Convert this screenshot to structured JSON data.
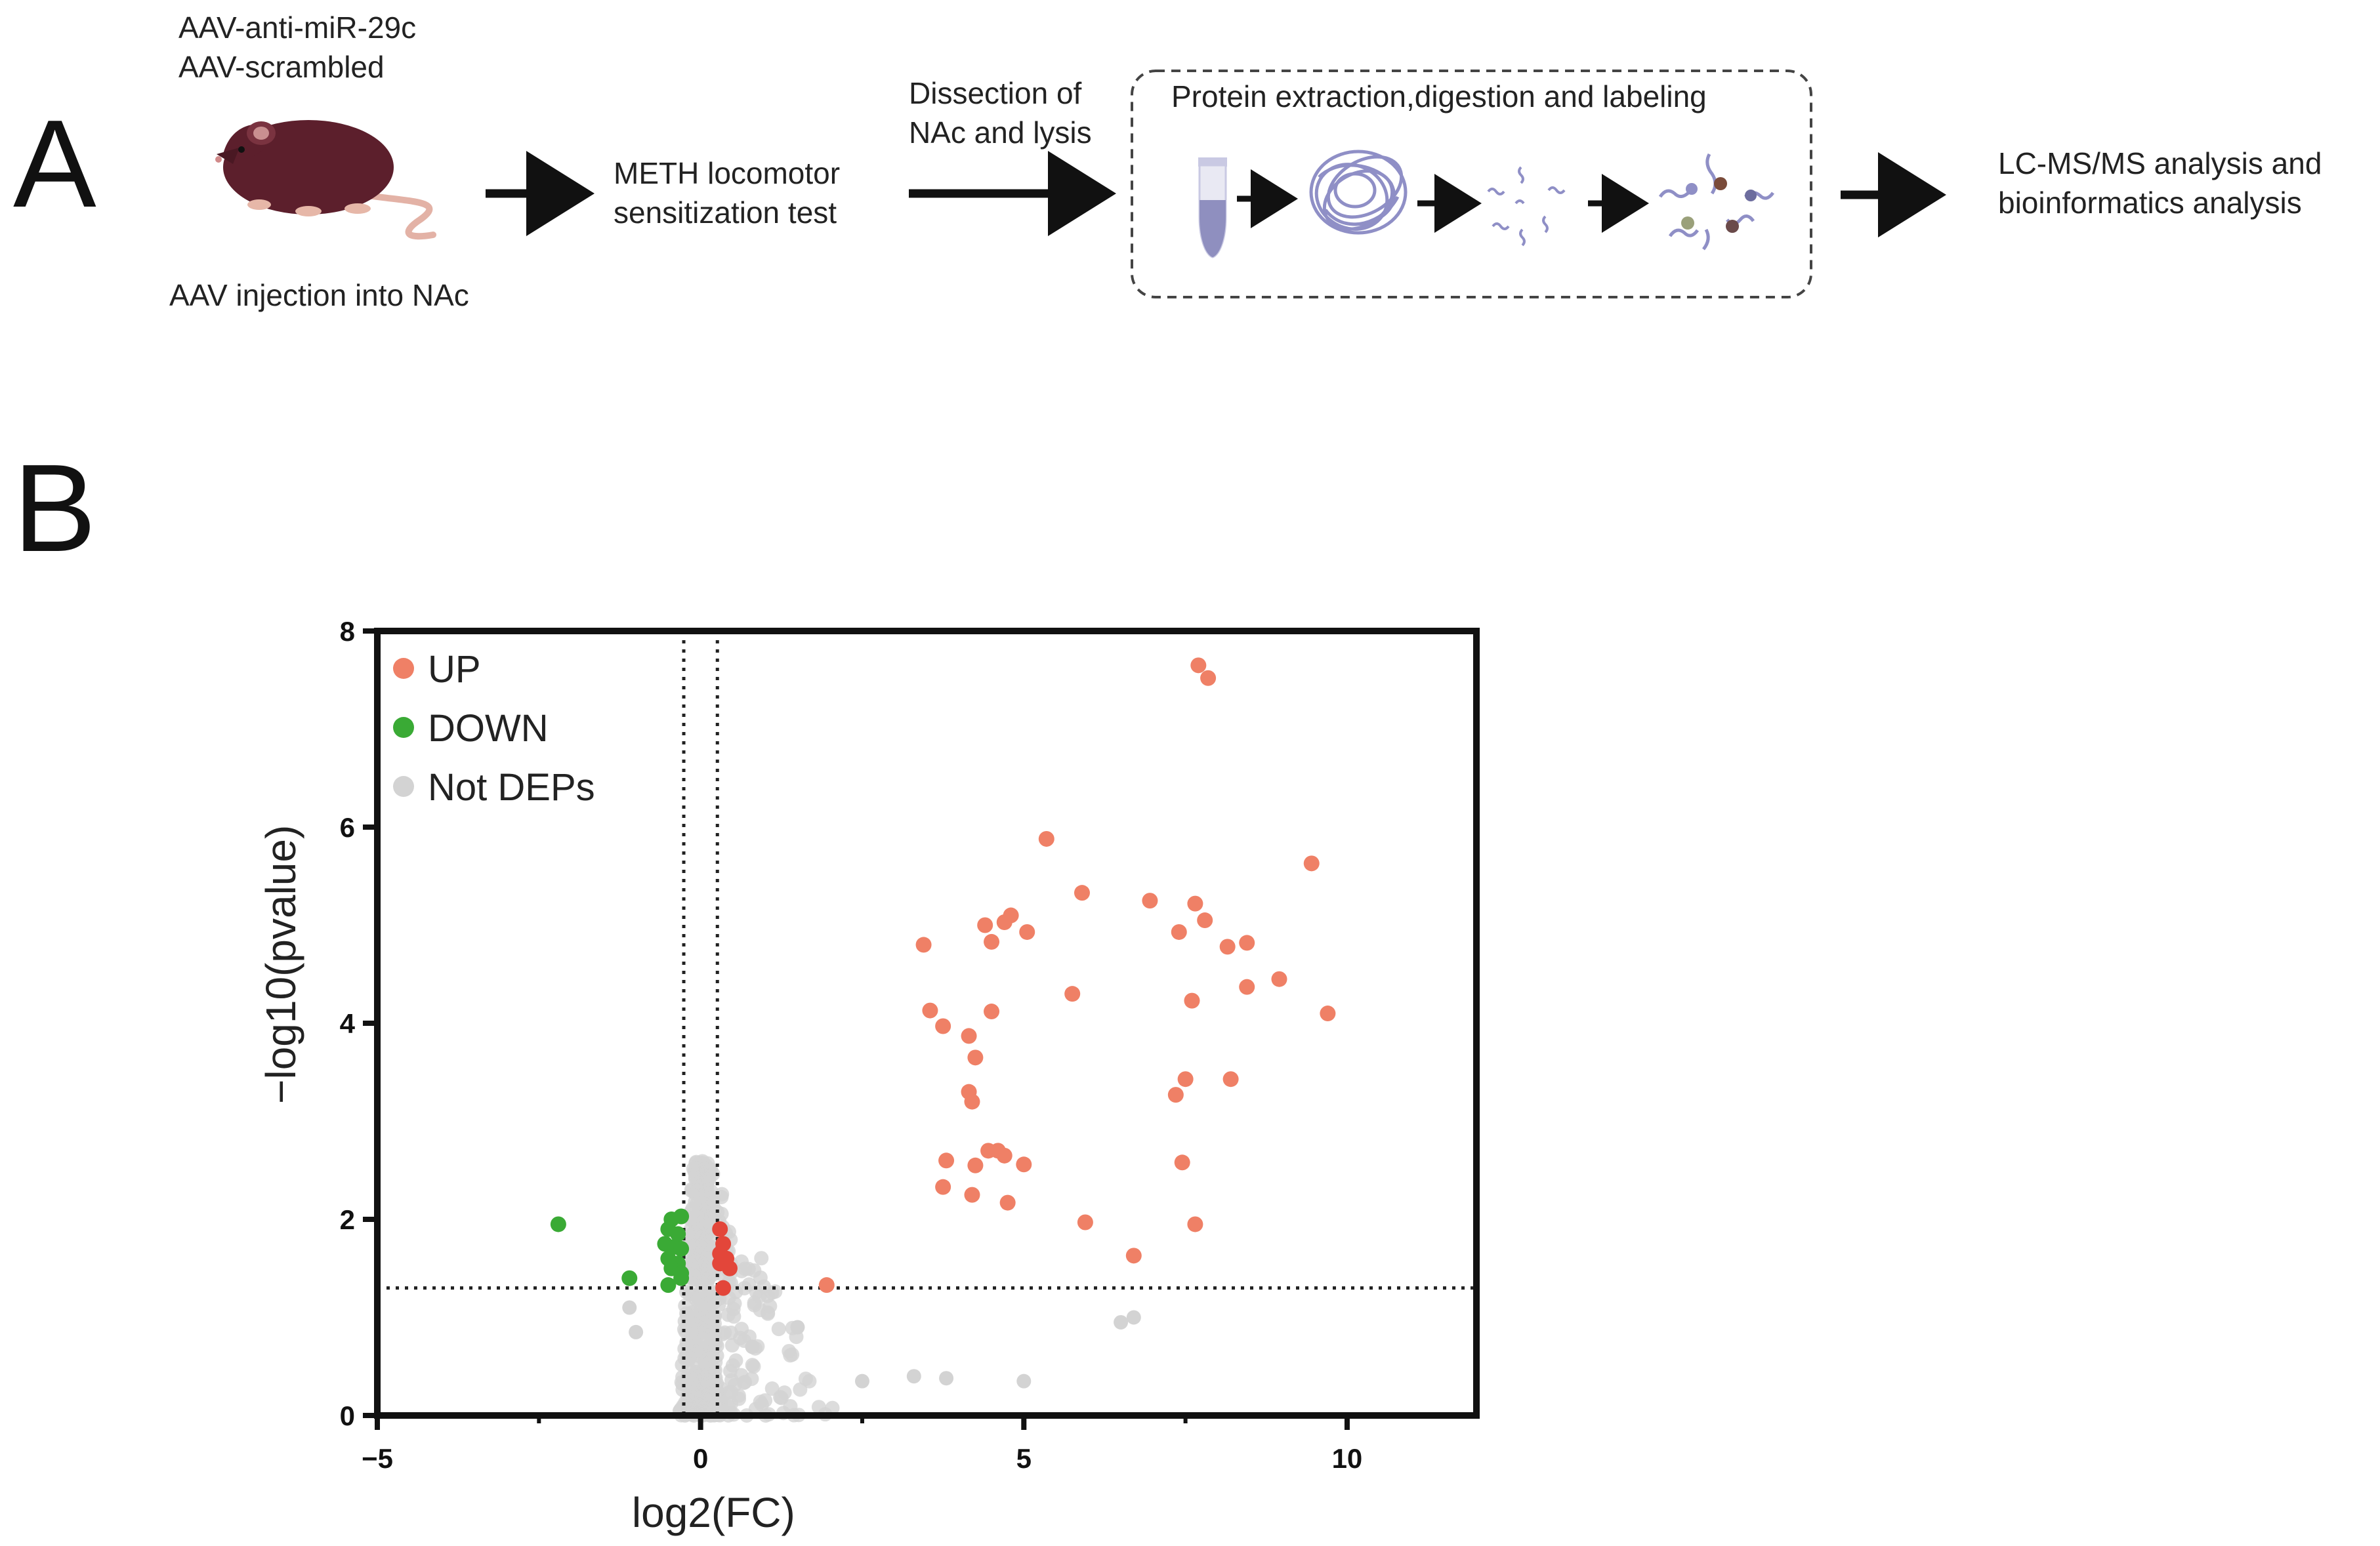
{
  "panel_a": {
    "letter": "A",
    "treatment_line1": "AAV-anti-miR-29c",
    "treatment_line2": "AAV-scrambled",
    "injection_caption": "AAV injection into NAc",
    "step2_line1": "METH  locomotor",
    "step2_line2": "sensitization test",
    "step3_line1": "Dissection of",
    "step3_line2": "NAc and lysis",
    "step4_title": "Protein extraction,digestion and labeling",
    "step5_line1": "LC-MS/MS analysis and",
    "step5_line2": "bioinformatics analysis",
    "icons": [
      "mouse-icon",
      "tube-icon",
      "protein-tangle-icon",
      "peptide-fragments-icon",
      "labeled-peptides-icon"
    ]
  },
  "panel_b": {
    "letter": "B"
  },
  "colors": {
    "up": "#ef8066",
    "up_threshold": "#e3463a",
    "down": "#3aaa35",
    "not_dep": "#d3d3d3",
    "axis": "#111111"
  },
  "chart_data": {
    "type": "scatter",
    "title": "",
    "xlabel": "log2(FC)",
    "ylabel": "−log10(pvalue)",
    "xlim": [
      -5,
      12
    ],
    "ylim": [
      0,
      8
    ],
    "xticks": [
      -5,
      0,
      5,
      10
    ],
    "xtick_labels": [
      "−5",
      "0",
      "5",
      "10"
    ],
    "yticks": [
      0,
      2,
      4,
      6,
      8
    ],
    "ytick_labels": [
      "0",
      "2",
      "4",
      "6",
      "8"
    ],
    "thresholds": {
      "log2fc": [
        -0.26,
        0.26
      ],
      "neg_log10_p": 1.3
    },
    "legend": [
      "UP",
      "DOWN",
      "Not DEPs"
    ],
    "legend_position": "top-left",
    "series": [
      {
        "name": "UP",
        "points": [
          [
            7.7,
            7.65
          ],
          [
            7.85,
            7.52
          ],
          [
            5.35,
            5.88
          ],
          [
            9.45,
            5.63
          ],
          [
            5.9,
            5.33
          ],
          [
            6.95,
            5.25
          ],
          [
            7.65,
            5.22
          ],
          [
            4.8,
            5.1
          ],
          [
            4.7,
            5.03
          ],
          [
            4.4,
            5.0
          ],
          [
            3.45,
            4.8
          ],
          [
            4.5,
            4.83
          ],
          [
            5.05,
            4.93
          ],
          [
            7.4,
            4.93
          ],
          [
            7.8,
            5.05
          ],
          [
            8.15,
            4.78
          ],
          [
            8.45,
            4.82
          ],
          [
            8.45,
            4.37
          ],
          [
            8.95,
            4.45
          ],
          [
            9.7,
            4.1
          ],
          [
            5.75,
            4.3
          ],
          [
            7.6,
            4.23
          ],
          [
            3.55,
            4.13
          ],
          [
            4.5,
            4.12
          ],
          [
            3.75,
            3.97
          ],
          [
            4.15,
            3.87
          ],
          [
            4.25,
            3.65
          ],
          [
            7.5,
            3.43
          ],
          [
            8.2,
            3.43
          ],
          [
            4.15,
            3.3
          ],
          [
            4.2,
            3.2
          ],
          [
            7.35,
            3.27
          ],
          [
            4.45,
            2.7
          ],
          [
            4.6,
            2.7
          ],
          [
            4.7,
            2.65
          ],
          [
            3.8,
            2.6
          ],
          [
            4.25,
            2.55
          ],
          [
            5.0,
            2.56
          ],
          [
            7.45,
            2.58
          ],
          [
            3.75,
            2.33
          ],
          [
            4.2,
            2.25
          ],
          [
            4.75,
            2.17
          ],
          [
            5.95,
            1.97
          ],
          [
            7.65,
            1.95
          ],
          [
            6.7,
            1.63
          ],
          [
            1.95,
            1.33
          ]
        ]
      },
      {
        "name": "UP",
        "style": "threshold",
        "points": [
          [
            0.3,
            1.9
          ],
          [
            0.35,
            1.75
          ],
          [
            0.3,
            1.65
          ],
          [
            0.45,
            1.5
          ],
          [
            0.3,
            1.55
          ],
          [
            0.35,
            1.3
          ],
          [
            0.4,
            1.6
          ]
        ]
      },
      {
        "name": "DOWN",
        "points": [
          [
            -2.2,
            1.95
          ],
          [
            -1.1,
            1.4
          ],
          [
            -0.45,
            2.0
          ],
          [
            -0.3,
            2.03
          ],
          [
            -0.5,
            1.9
          ],
          [
            -0.35,
            1.85
          ],
          [
            -0.55,
            1.75
          ],
          [
            -0.4,
            1.72
          ],
          [
            -0.3,
            1.7
          ],
          [
            -0.5,
            1.6
          ],
          [
            -0.35,
            1.55
          ],
          [
            -0.45,
            1.5
          ],
          [
            -0.3,
            1.45
          ],
          [
            -0.5,
            1.33
          ],
          [
            -0.3,
            1.4
          ]
        ]
      }
    ]
  }
}
